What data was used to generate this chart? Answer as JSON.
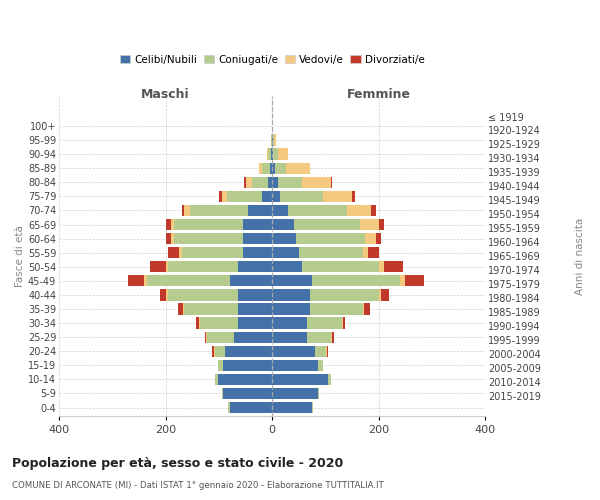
{
  "age_groups": [
    "0-4",
    "5-9",
    "10-14",
    "15-19",
    "20-24",
    "25-29",
    "30-34",
    "35-39",
    "40-44",
    "45-49",
    "50-54",
    "55-59",
    "60-64",
    "65-69",
    "70-74",
    "75-79",
    "80-84",
    "85-89",
    "90-94",
    "95-99",
    "100+"
  ],
  "birth_years": [
    "2015-2019",
    "2010-2014",
    "2005-2009",
    "2000-2004",
    "1995-1999",
    "1990-1994",
    "1985-1989",
    "1980-1984",
    "1975-1979",
    "1970-1974",
    "1965-1969",
    "1960-1964",
    "1955-1959",
    "1950-1954",
    "1945-1949",
    "1940-1944",
    "1935-1939",
    "1930-1934",
    "1925-1929",
    "1920-1924",
    "≤ 1919"
  ],
  "maschi": {
    "celibi": [
      80,
      92,
      102,
      92,
      88,
      72,
      65,
      65,
      65,
      80,
      65,
      55,
      55,
      55,
      45,
      20,
      8,
      5,
      2,
      1,
      0
    ],
    "coniugati": [
      2,
      2,
      5,
      10,
      20,
      50,
      70,
      100,
      130,
      155,
      130,
      115,
      130,
      130,
      110,
      65,
      30,
      15,
      5,
      1,
      0
    ],
    "vedovi": [
      0,
      0,
      0,
      0,
      2,
      2,
      2,
      3,
      5,
      5,
      5,
      5,
      5,
      5,
      10,
      10,
      12,
      5,
      2,
      0,
      0
    ],
    "divorziati": [
      0,
      0,
      0,
      0,
      2,
      2,
      5,
      8,
      10,
      30,
      30,
      20,
      10,
      10,
      5,
      5,
      2,
      0,
      0,
      0,
      0
    ]
  },
  "femmine": {
    "nubili": [
      75,
      85,
      105,
      85,
      80,
      65,
      65,
      70,
      70,
      75,
      55,
      50,
      45,
      40,
      30,
      15,
      10,
      5,
      2,
      1,
      0
    ],
    "coniugate": [
      2,
      2,
      5,
      10,
      20,
      45,
      65,
      100,
      130,
      165,
      145,
      120,
      130,
      125,
      110,
      80,
      45,
      20,
      8,
      2,
      0
    ],
    "vedove": [
      0,
      0,
      0,
      0,
      2,
      2,
      2,
      3,
      5,
      10,
      10,
      10,
      20,
      35,
      45,
      55,
      55,
      45,
      20,
      5,
      0
    ],
    "divorziate": [
      0,
      0,
      0,
      0,
      2,
      3,
      5,
      10,
      15,
      35,
      35,
      20,
      10,
      10,
      10,
      5,
      2,
      0,
      0,
      0,
      0
    ]
  },
  "colors": {
    "celibi_nubili": "#4472a8",
    "coniugati": "#b5cc8e",
    "vedovi": "#f5c97f",
    "divorziati": "#c0392b"
  },
  "xlim": [
    -400,
    400
  ],
  "xticks": [
    -400,
    -200,
    0,
    200,
    400
  ],
  "xticklabels": [
    "400",
    "200",
    "0",
    "200",
    "400"
  ],
  "title": "Popolazione per età, sesso e stato civile - 2020",
  "subtitle": "COMUNE DI ARCONATE (MI) - Dati ISTAT 1° gennaio 2020 - Elaborazione TUTTITALIA.IT",
  "ylabel_left": "Fasce di età",
  "ylabel_right": "Anni di nascita",
  "label_maschi": "Maschi",
  "label_femmine": "Femmine",
  "legend_labels": [
    "Celibi/Nubili",
    "Coniugati/e",
    "Vedovi/e",
    "Divorziati/e"
  ],
  "bar_height": 0.8,
  "background_color": "#ffffff",
  "grid_color": "#cccccc"
}
